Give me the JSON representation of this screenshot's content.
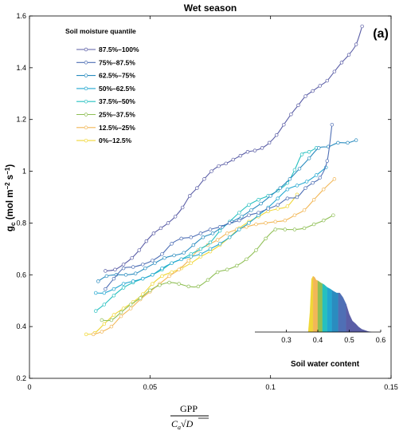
{
  "chart_data": {
    "type": "line",
    "title": "Wet season",
    "panel_label": "(a)",
    "ylabel": {
      "main": "g",
      "sub": "c",
      "rest": " (mol m",
      "sup1": "−2",
      "mid": " s",
      "sup2": "−1",
      "end": ")"
    },
    "xlabel": {
      "numerator": "GPP",
      "den_c": "C",
      "den_a": "a",
      "den_root": "√",
      "den_d": "D"
    },
    "xlim": [
      0,
      0.15
    ],
    "ylim": [
      0.2,
      1.6
    ],
    "xticks": [
      0,
      0.05,
      0.1,
      0.15
    ],
    "xtick_labels": [
      "0",
      "0.05",
      "0.1",
      "0.15"
    ],
    "yticks": [
      0.2,
      0.4,
      0.6,
      0.8,
      1.0,
      1.2,
      1.4,
      1.6
    ],
    "ytick_labels": [
      "0.2",
      "0.4",
      "0.6",
      "0.8",
      "1",
      "1.2",
      "1.4",
      "1.6"
    ],
    "legend_title": "Soil moisture quantile",
    "legend_position": "top-left",
    "series": [
      {
        "name": "87.5%–100%",
        "color": "#5b5ea6",
        "x": [
          0.0315,
          0.0355,
          0.039,
          0.0425,
          0.0455,
          0.0485,
          0.0515,
          0.0545,
          0.0575,
          0.0605,
          0.0635,
          0.0665,
          0.0695,
          0.0725,
          0.0755,
          0.0785,
          0.0815,
          0.0845,
          0.0875,
          0.0905,
          0.0935,
          0.0965,
          0.0995,
          0.1025,
          0.1055,
          0.1085,
          0.1115,
          0.1145,
          0.1175,
          0.1205,
          0.1235,
          0.1265,
          0.1295,
          0.1325,
          0.1355,
          0.138
        ],
        "y": [
          0.615,
          0.62,
          0.64,
          0.665,
          0.695,
          0.73,
          0.76,
          0.78,
          0.8,
          0.825,
          0.86,
          0.905,
          0.935,
          0.97,
          1.0,
          1.02,
          1.03,
          1.045,
          1.06,
          1.075,
          1.08,
          1.09,
          1.11,
          1.14,
          1.18,
          1.22,
          1.255,
          1.29,
          1.31,
          1.33,
          1.35,
          1.385,
          1.42,
          1.45,
          1.49,
          1.56
        ]
      },
      {
        "name": "75%–87.5%",
        "color": "#4f6fb5",
        "x": [
          0.0315,
          0.035,
          0.039,
          0.043,
          0.047,
          0.051,
          0.055,
          0.059,
          0.063,
          0.067,
          0.071,
          0.075,
          0.079,
          0.083,
          0.087,
          0.091,
          0.095,
          0.099,
          0.103,
          0.107,
          0.111,
          0.1145,
          0.1175,
          0.1205,
          0.1235,
          0.1255
        ],
        "y": [
          0.545,
          0.585,
          0.625,
          0.63,
          0.64,
          0.655,
          0.68,
          0.72,
          0.74,
          0.745,
          0.76,
          0.775,
          0.785,
          0.8,
          0.81,
          0.83,
          0.84,
          0.855,
          0.87,
          0.895,
          0.9,
          0.935,
          0.955,
          0.975,
          1.04,
          1.18
        ]
      },
      {
        "name": "62.5%–75%",
        "color": "#2a8cbf",
        "x": [
          0.0285,
          0.032,
          0.036,
          0.04,
          0.044,
          0.048,
          0.052,
          0.056,
          0.06,
          0.064,
          0.068,
          0.072,
          0.076,
          0.08,
          0.084,
          0.088,
          0.092,
          0.096,
          0.1,
          0.104,
          0.108,
          0.112,
          0.116,
          0.12,
          0.124,
          0.128,
          0.132,
          0.1355
        ],
        "y": [
          0.575,
          0.595,
          0.6,
          0.6,
          0.605,
          0.625,
          0.645,
          0.665,
          0.675,
          0.685,
          0.715,
          0.745,
          0.76,
          0.785,
          0.805,
          0.825,
          0.85,
          0.875,
          0.905,
          0.935,
          0.97,
          1.01,
          1.05,
          1.09,
          1.095,
          1.11,
          1.11,
          1.12
        ]
      },
      {
        "name": "50%–62.5%",
        "color": "#22a7d0",
        "x": [
          0.0275,
          0.031,
          0.035,
          0.039,
          0.043,
          0.047,
          0.051,
          0.055,
          0.059,
          0.063,
          0.067,
          0.071,
          0.075,
          0.079,
          0.083,
          0.087,
          0.091,
          0.095,
          0.099,
          0.103,
          0.107,
          0.111,
          0.115,
          0.119,
          0.123
        ],
        "y": [
          0.53,
          0.53,
          0.545,
          0.565,
          0.575,
          0.585,
          0.6,
          0.625,
          0.645,
          0.66,
          0.67,
          0.68,
          0.7,
          0.72,
          0.745,
          0.775,
          0.8,
          0.83,
          0.86,
          0.895,
          0.93,
          0.945,
          0.96,
          0.985,
          1.015
        ]
      },
      {
        "name": "37.5%–50%",
        "color": "#26c0c0",
        "x": [
          0.0275,
          0.031,
          0.035,
          0.039,
          0.043,
          0.047,
          0.051,
          0.055,
          0.059,
          0.063,
          0.067,
          0.071,
          0.075,
          0.079,
          0.083,
          0.087,
          0.091,
          0.095,
          0.099,
          0.103,
          0.107,
          0.11,
          0.113,
          0.116,
          0.119
        ],
        "y": [
          0.46,
          0.485,
          0.52,
          0.55,
          0.57,
          0.585,
          0.6,
          0.62,
          0.645,
          0.66,
          0.68,
          0.7,
          0.725,
          0.77,
          0.805,
          0.84,
          0.87,
          0.89,
          0.905,
          0.925,
          0.955,
          1.005,
          1.065,
          1.075,
          1.09
        ]
      },
      {
        "name": "25%–37.5%",
        "color": "#8fbf55",
        "x": [
          0.03,
          0.034,
          0.038,
          0.042,
          0.046,
          0.05,
          0.054,
          0.058,
          0.062,
          0.066,
          0.07,
          0.074,
          0.078,
          0.082,
          0.086,
          0.09,
          0.094,
          0.098,
          0.102,
          0.106,
          0.11,
          0.114,
          0.118,
          0.122,
          0.126
        ],
        "y": [
          0.425,
          0.425,
          0.455,
          0.485,
          0.51,
          0.54,
          0.56,
          0.57,
          0.565,
          0.555,
          0.555,
          0.58,
          0.61,
          0.62,
          0.635,
          0.66,
          0.695,
          0.74,
          0.775,
          0.775,
          0.775,
          0.78,
          0.795,
          0.81,
          0.83
        ]
      },
      {
        "name": "12.5%–25%",
        "color": "#f2b757",
        "x": [
          0.0265,
          0.03,
          0.034,
          0.038,
          0.042,
          0.046,
          0.05,
          0.054,
          0.058,
          0.062,
          0.066,
          0.07,
          0.074,
          0.078,
          0.082,
          0.086,
          0.09,
          0.094,
          0.098,
          0.102,
          0.106,
          0.11,
          0.114,
          0.118,
          0.122,
          0.1265
        ],
        "y": [
          0.37,
          0.38,
          0.4,
          0.44,
          0.47,
          0.505,
          0.535,
          0.565,
          0.595,
          0.62,
          0.655,
          0.695,
          0.715,
          0.735,
          0.76,
          0.775,
          0.785,
          0.795,
          0.8,
          0.805,
          0.81,
          0.83,
          0.85,
          0.89,
          0.93,
          0.97
        ]
      },
      {
        "name": "0%–12.5%",
        "color": "#f0d737",
        "x": [
          0.0235,
          0.027,
          0.031,
          0.035,
          0.039,
          0.043,
          0.047,
          0.051,
          0.055,
          0.059,
          0.063,
          0.067,
          0.071,
          0.075,
          0.079,
          0.083,
          0.087,
          0.091,
          0.095,
          0.099,
          0.103,
          0.107,
          0.111
        ],
        "y": [
          0.37,
          0.375,
          0.41,
          0.445,
          0.47,
          0.495,
          0.525,
          0.565,
          0.595,
          0.61,
          0.625,
          0.645,
          0.67,
          0.69,
          0.715,
          0.745,
          0.78,
          0.805,
          0.825,
          0.845,
          0.855,
          0.865,
          0.91
        ]
      }
    ],
    "inset": {
      "xlabel": "Soil water content",
      "xlim": [
        0.2,
        0.6
      ],
      "xticks": [
        0.3,
        0.4,
        0.5,
        0.6
      ],
      "xtick_labels": [
        "0.3",
        "0.4",
        "0.5",
        "0.6"
      ],
      "density_x": [
        0.37,
        0.375,
        0.38,
        0.385,
        0.39,
        0.395,
        0.4,
        0.41,
        0.42,
        0.43,
        0.44,
        0.45,
        0.46,
        0.47,
        0.48,
        0.49,
        0.5,
        0.51,
        0.52,
        0.53,
        0.54,
        0.55,
        0.56,
        0.57
      ],
      "density_y": [
        0.02,
        0.35,
        0.95,
        1.0,
        0.98,
        0.93,
        0.92,
        0.88,
        0.85,
        0.8,
        0.77,
        0.73,
        0.7,
        0.7,
        0.62,
        0.5,
        0.32,
        0.2,
        0.15,
        0.09,
        0.05,
        0.03,
        0.01,
        0.0
      ],
      "band_edges": [
        0.37,
        0.385,
        0.4,
        0.415,
        0.43,
        0.445,
        0.465,
        0.49,
        0.57
      ],
      "band_colors": [
        "#f0d737",
        "#f2b757",
        "#8fbf55",
        "#26c0c0",
        "#22a7d0",
        "#2a8cbf",
        "#4f6fb5",
        "#5b5ea6"
      ]
    }
  }
}
